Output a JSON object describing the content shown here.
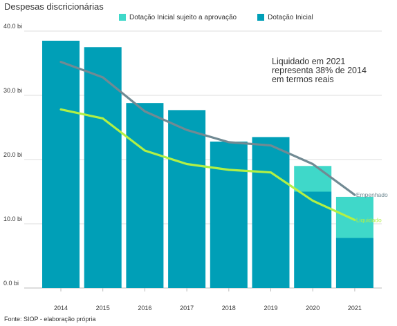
{
  "title": "Despesas discricionárias",
  "source": "Fonte: SIOP - elaboração própria",
  "annotation": [
    "Liquidado em 2021",
    "representa 38% de 2014",
    "em termos reais"
  ],
  "colors": {
    "bar_base": "#009fb7",
    "bar_pending": "#3fd8c9",
    "line_empenhado": "#718a93",
    "line_liquidado": "#b2f045",
    "grid": "#dddddd",
    "text": "#333333"
  },
  "chart_data": {
    "type": "bar",
    "categories": [
      "2014",
      "2015",
      "2016",
      "2017",
      "2018",
      "2019",
      "2020",
      "2021"
    ],
    "series": [
      {
        "name": "Dotação Inicial sujeito a aprovação",
        "kind": "bar",
        "stack": "dotacao",
        "values": [
          0,
          0,
          0,
          0,
          0,
          0,
          4.0,
          6.4
        ]
      },
      {
        "name": "Dotação Inicial",
        "kind": "bar",
        "stack": "dotacao",
        "values": [
          38.5,
          37.5,
          28.8,
          27.7,
          22.8,
          23.5,
          15.0,
          7.8
        ]
      },
      {
        "name": "Empenhado",
        "kind": "line",
        "values": [
          35.2,
          32.8,
          27.5,
          24.6,
          22.7,
          22.2,
          19.3,
          14.5
        ]
      },
      {
        "name": "Liquidado",
        "kind": "line",
        "values": [
          27.8,
          26.4,
          21.4,
          19.3,
          18.4,
          18.0,
          13.6,
          10.6
        ]
      }
    ],
    "y_ticks": [
      "0.0 bi",
      "10.0 bi",
      "20.0 bi",
      "30.0 bi",
      "40.0 bi"
    ],
    "ylim": [
      0,
      40
    ],
    "grid": true,
    "legend_position": "top"
  }
}
